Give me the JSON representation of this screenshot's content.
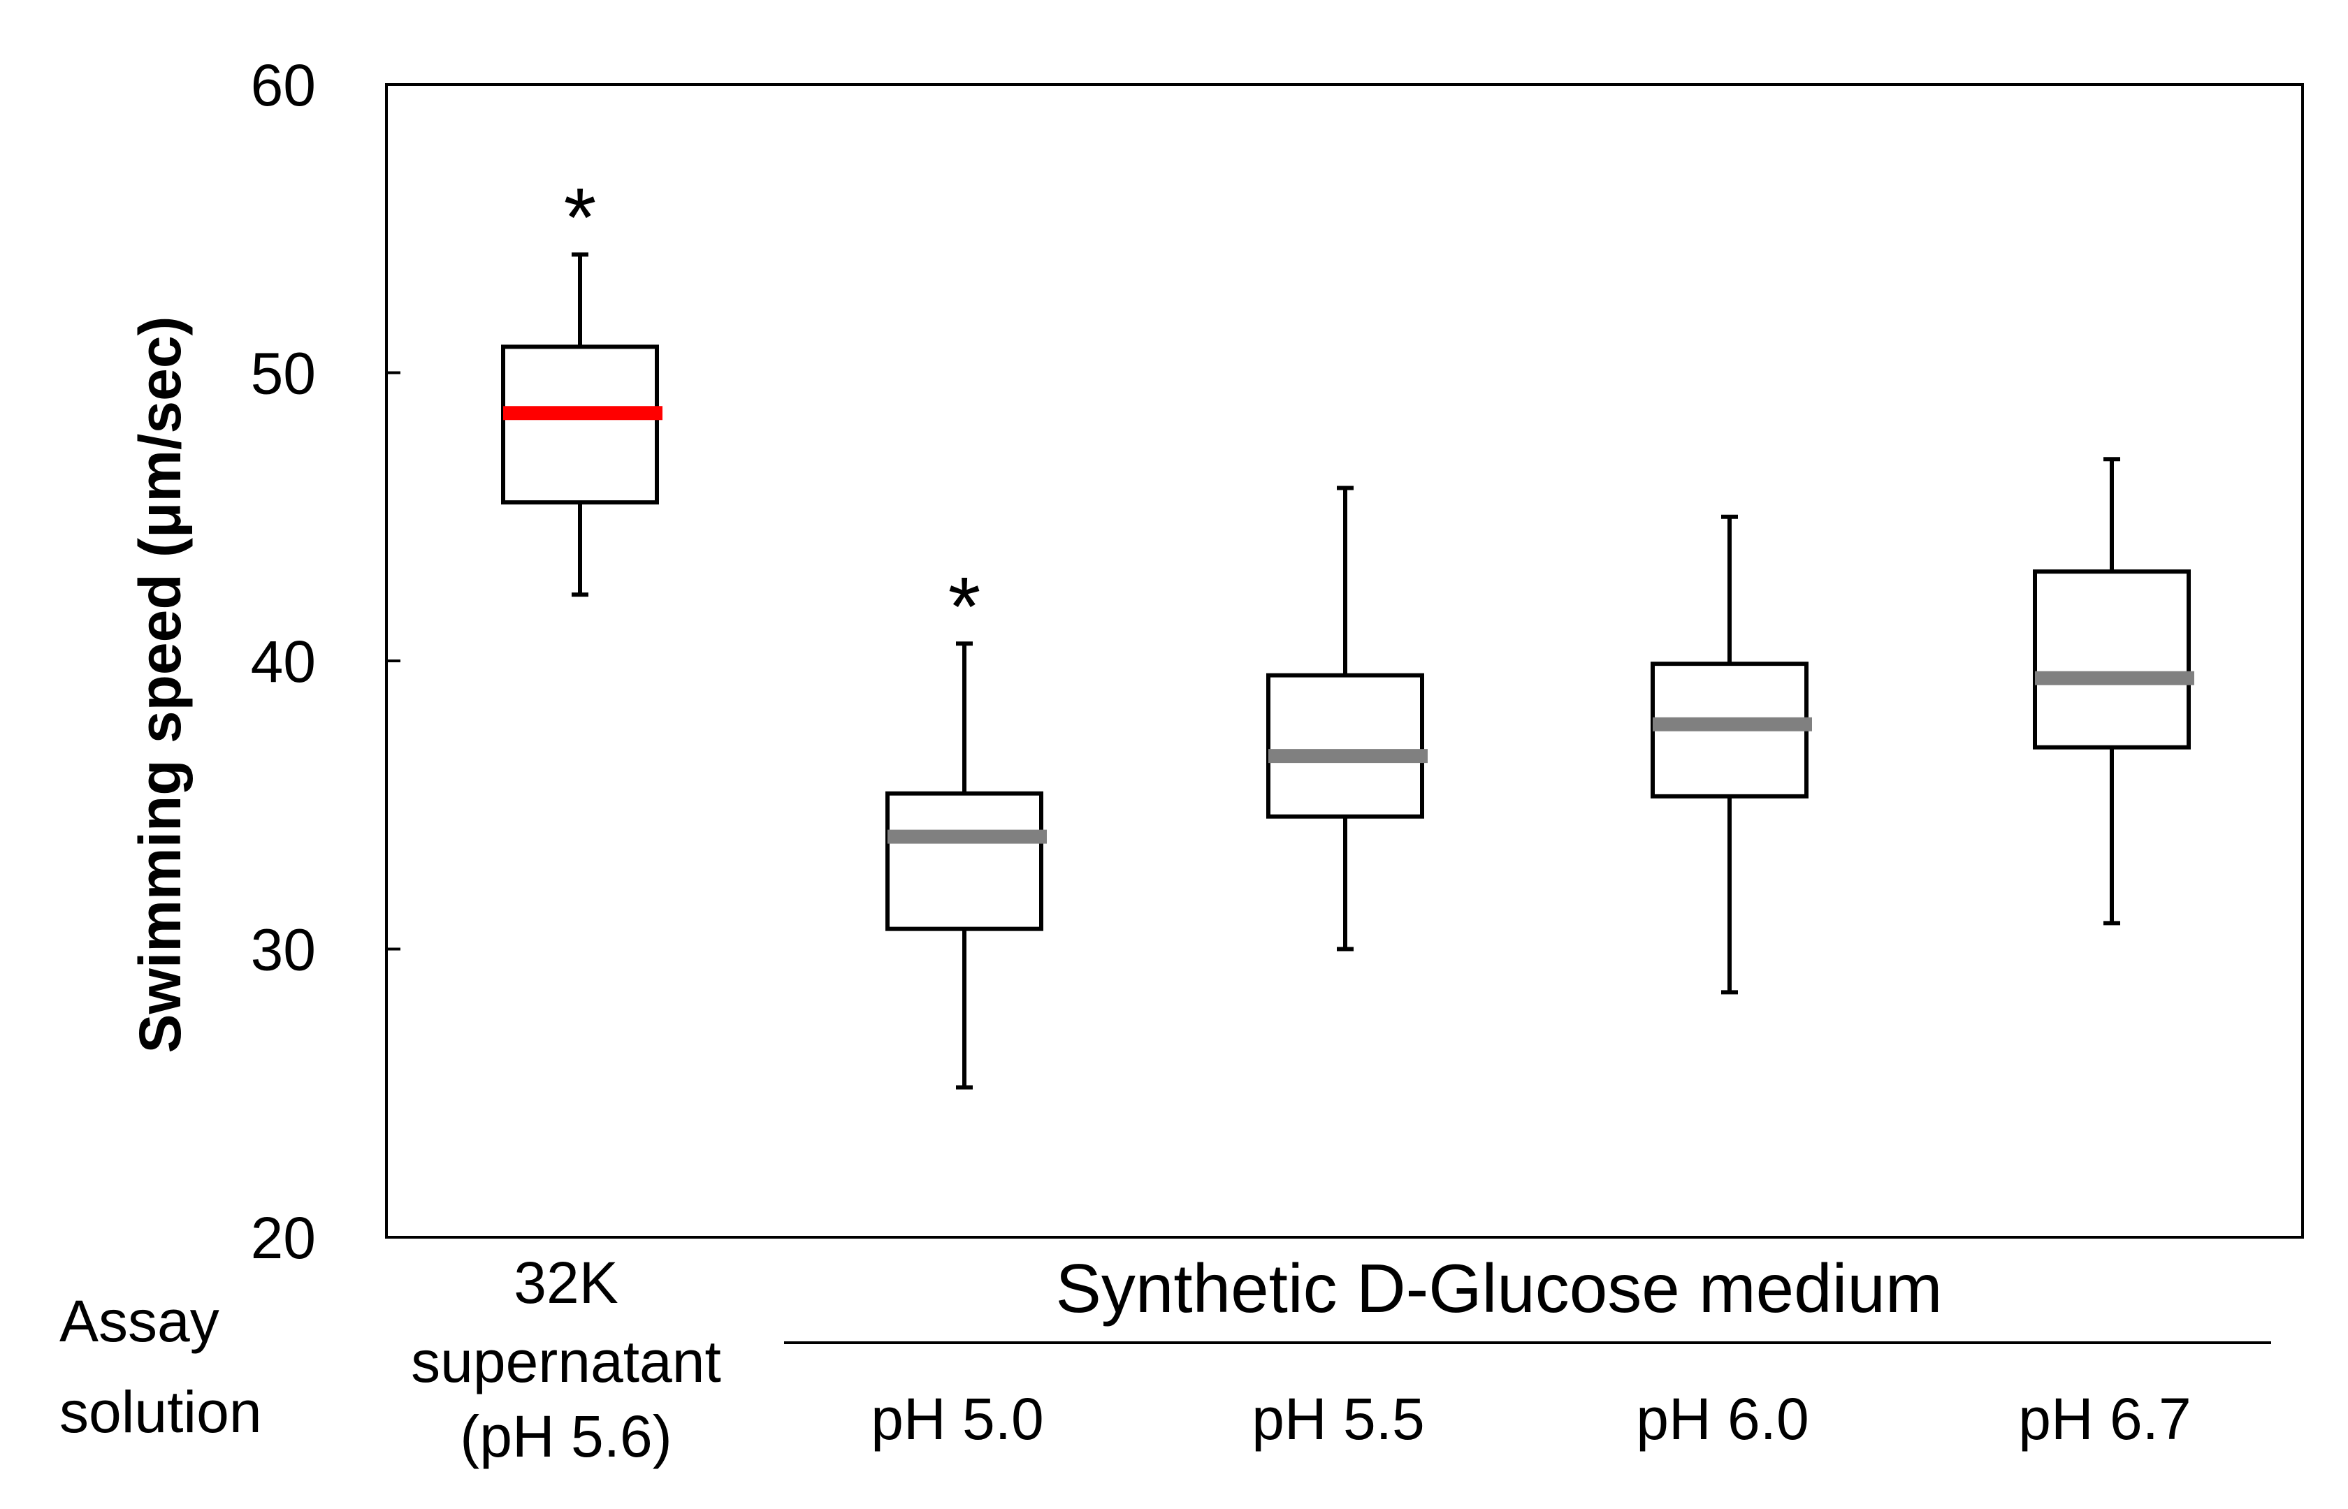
{
  "chart_data": {
    "type": "boxplot",
    "ylabel": "Swimming speed (μm/sec)",
    "ylim": [
      20,
      60
    ],
    "yticks": [
      20,
      30,
      40,
      50,
      60
    ],
    "row_label_line1": "Assay",
    "row_label_line2": "solution",
    "group_label": "Synthetic D-Glucose medium",
    "significance_marker": "*",
    "first_category_lines": [
      "32K",
      "supernatant",
      "(pH 5.6)"
    ],
    "categories": [
      "32K supernatant (pH 5.6)",
      "pH 5.0",
      "pH 5.5",
      "pH 6.0",
      "pH 6.7"
    ],
    "boxes": [
      {
        "label": "32K supernatant (pH 5.6)",
        "whisker_low": 42.3,
        "q1": 45.5,
        "median": 48.6,
        "q3": 50.9,
        "whisker_high": 54.1,
        "significant": true,
        "median_color": "#ff0000"
      },
      {
        "label": "pH 5.0",
        "whisker_low": 25.2,
        "q1": 30.7,
        "median": 33.9,
        "q3": 35.4,
        "whisker_high": 40.6,
        "significant": true,
        "median_color": "#808080"
      },
      {
        "label": "pH 5.5",
        "whisker_low": 30.0,
        "q1": 34.6,
        "median": 36.7,
        "q3": 39.5,
        "whisker_high": 46.0,
        "significant": false,
        "median_color": "#808080"
      },
      {
        "label": "pH 6.0",
        "whisker_low": 28.5,
        "q1": 35.3,
        "median": 37.8,
        "q3": 39.9,
        "whisker_high": 45.0,
        "significant": false,
        "median_color": "#808080"
      },
      {
        "label": "pH 6.7",
        "whisker_low": 30.9,
        "q1": 37.0,
        "median": 39.4,
        "q3": 43.1,
        "whisker_high": 47.0,
        "significant": false,
        "median_color": "#808080"
      }
    ]
  }
}
